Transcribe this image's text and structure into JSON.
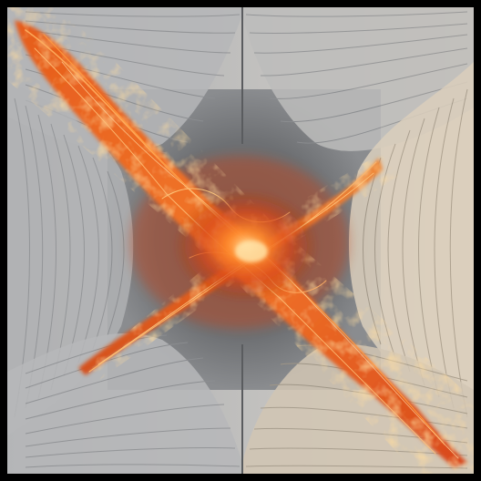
{
  "artwork": {
    "subject": "fiery-x-over-folded-paper",
    "colors": {
      "frame": "#000000",
      "paper_cool": "#b9bbbd",
      "paper_warm": "#d8cdbd",
      "recess": "#6b6c6e",
      "fire_dark": "#b8380c",
      "fire_mid": "#e8581a",
      "fire_bright": "#ffb35a"
    }
  }
}
